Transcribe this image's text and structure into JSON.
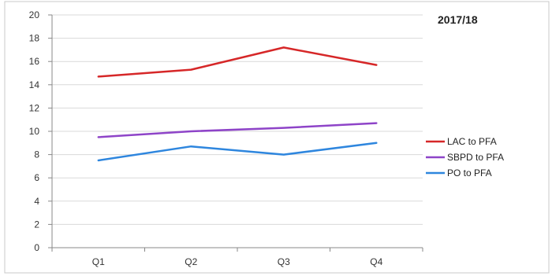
{
  "chart_data": {
    "type": "line",
    "title": "2017/18",
    "categories": [
      "Q1",
      "Q2",
      "Q3",
      "Q4"
    ],
    "yticks": [
      "0",
      "2",
      "4",
      "6",
      "8",
      "10",
      "12",
      "14",
      "16",
      "18",
      "20"
    ],
    "ylim": [
      0,
      20
    ],
    "grid": true,
    "legend_position": "right",
    "xlabel": "",
    "ylabel": "",
    "series": [
      {
        "name": "LAC to PFA",
        "color": "#d62728",
        "values": [
          14.7,
          15.3,
          17.2,
          15.7
        ]
      },
      {
        "name": "SBPD to PFA",
        "color": "#8e44c8",
        "values": [
          9.5,
          10.0,
          10.3,
          10.7
        ]
      },
      {
        "name": "PO to PFA",
        "color": "#2e86de",
        "values": [
          7.5,
          8.7,
          8.0,
          9.0
        ]
      }
    ]
  }
}
